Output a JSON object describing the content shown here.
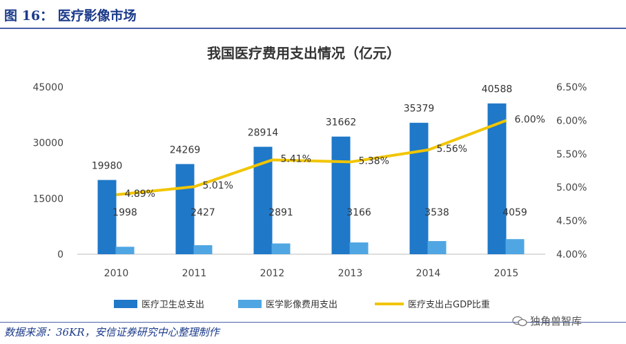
{
  "figure": {
    "title": "图 16： 医疗影像市场",
    "source": "数据来源：36KR，安信证券研究中心整理制作",
    "watermark": "独角兽智库"
  },
  "colors": {
    "total_bar": "#1f78c8",
    "imaging_bar": "#4fa6e3",
    "gdp_line": "#f2c500",
    "header_blue": "#1b3a8a"
  },
  "chart_data": {
    "type": "bar",
    "title": "我国医疗费用支出情况（亿元）",
    "categories": [
      "2010",
      "2011",
      "2012",
      "2013",
      "2014",
      "2015"
    ],
    "series": [
      {
        "name": "医疗卫生总支出",
        "type": "bar",
        "axis": "left",
        "values": [
          19980,
          24269,
          28914,
          31662,
          35379,
          40588
        ],
        "labels": [
          "19980",
          "24269",
          "28914",
          "31662",
          "35379",
          "40588"
        ]
      },
      {
        "name": "医学影像费用支出",
        "type": "bar",
        "axis": "left",
        "values": [
          1998,
          2427,
          2891,
          3166,
          3538,
          4059
        ],
        "labels": [
          "1998",
          "2427",
          "2891",
          "3166",
          "3538",
          "4059"
        ]
      },
      {
        "name": "医疗支出占GDP比重",
        "type": "line",
        "axis": "right",
        "values": [
          4.89,
          5.01,
          5.41,
          5.38,
          5.56,
          6.0
        ],
        "labels": [
          "4.89%",
          "5.01%",
          "5.41%",
          "5.38%",
          "5.56%",
          "6.00%"
        ]
      }
    ],
    "left_axis": {
      "ticks": [
        0,
        15000,
        30000,
        45000
      ],
      "tick_labels": [
        "0",
        "15000",
        "30000",
        "45000"
      ],
      "range": [
        0,
        45000
      ]
    },
    "right_axis": {
      "ticks": [
        4.0,
        4.5,
        5.0,
        5.5,
        6.0,
        6.5
      ],
      "tick_labels": [
        "4.00%",
        "4.50%",
        "5.00%",
        "5.50%",
        "6.00%",
        "6.50%"
      ],
      "range": [
        4.0,
        6.5
      ]
    },
    "grid": false,
    "legend": "bottom"
  }
}
